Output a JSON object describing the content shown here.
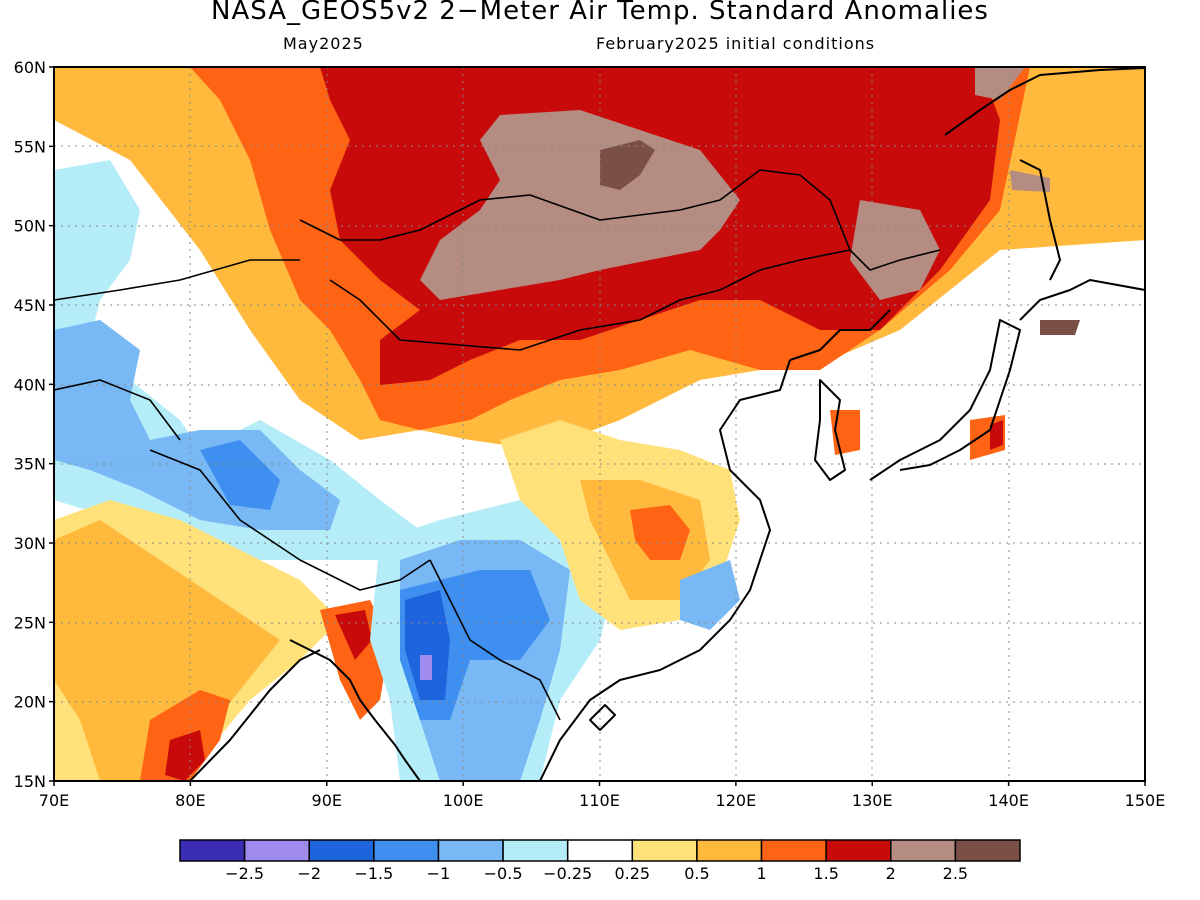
{
  "header": {
    "title": "NASA_GEOS5v2 2−Meter Air Temp. Standard Anomalies",
    "valid_month": "May2025",
    "init": "February2025 initial conditions"
  },
  "map": {
    "lat_labels": [
      "60N",
      "55N",
      "50N",
      "45N",
      "40N",
      "35N",
      "30N",
      "25N",
      "20N",
      "15N"
    ],
    "lon_labels": [
      "70E",
      "80E",
      "90E",
      "100E",
      "110E",
      "120E",
      "130E",
      "140E",
      "150E"
    ],
    "lat_range": [
      15,
      60
    ],
    "lon_range": [
      70,
      150
    ]
  },
  "legend": {
    "colors": [
      "#3a2db4",
      "#9f8bee",
      "#1e64dc",
      "#3f8ff0",
      "#78b8f4",
      "#b4ecf8",
      "#ffffff",
      "#ffe17a",
      "#ffb93c",
      "#ff6414",
      "#c80a0a",
      "#b48c82",
      "#7a5046"
    ],
    "labels": [
      "−2.5",
      "−2",
      "−1.5",
      "−1",
      "−0.5",
      "−0.25",
      "0.25",
      "0.5",
      "1",
      "1.5",
      "2",
      "2.5"
    ]
  }
}
